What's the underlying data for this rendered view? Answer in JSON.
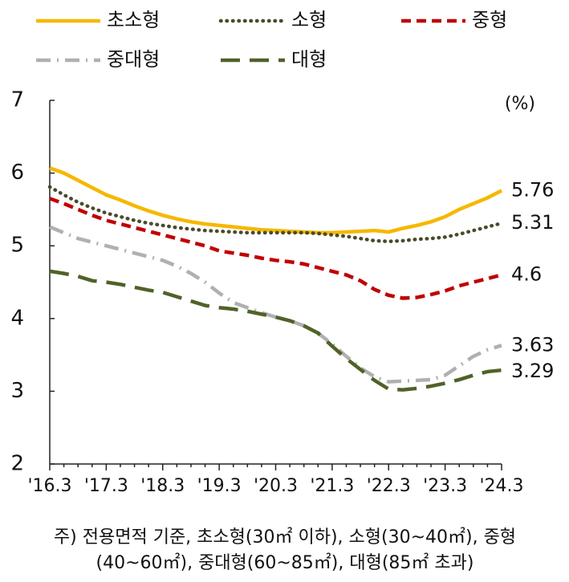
{
  "chart_data": {
    "type": "line",
    "unit_label": "(%)",
    "categories": [
      "'16.3",
      null,
      null,
      null,
      "'17.3",
      null,
      null,
      null,
      "'18.3",
      null,
      null,
      null,
      "'19.3",
      null,
      null,
      null,
      "'20.3",
      null,
      null,
      null,
      "'21.3",
      null,
      null,
      null,
      "'22.3",
      null,
      null,
      null,
      "'23.3",
      null,
      null,
      null,
      "'24.3"
    ],
    "ylim": [
      2,
      7
    ],
    "yticks": [
      2,
      3,
      4,
      5,
      6,
      7
    ],
    "grid": false,
    "series": [
      {
        "name": "초소형",
        "color": "#f5b800",
        "style": "solid",
        "values": [
          6.07,
          6.0,
          5.9,
          5.8,
          5.7,
          5.63,
          5.55,
          5.48,
          5.42,
          5.37,
          5.33,
          5.3,
          5.28,
          5.26,
          5.24,
          5.22,
          5.21,
          5.2,
          5.19,
          5.18,
          5.18,
          5.19,
          5.2,
          5.21,
          5.19,
          5.24,
          5.28,
          5.33,
          5.4,
          5.5,
          5.58,
          5.66,
          5.76
        ]
      },
      {
        "name": "소형",
        "color": "#4a4a2a",
        "style": "dotted",
        "values": [
          5.81,
          5.7,
          5.6,
          5.52,
          5.45,
          5.4,
          5.35,
          5.31,
          5.28,
          5.25,
          5.23,
          5.21,
          5.2,
          5.19,
          5.18,
          5.18,
          5.18,
          5.18,
          5.18,
          5.17,
          5.15,
          5.13,
          5.1,
          5.07,
          5.06,
          5.07,
          5.09,
          5.1,
          5.12,
          5.16,
          5.21,
          5.26,
          5.31
        ]
      },
      {
        "name": "중형",
        "color": "#c00000",
        "style": "dashed",
        "values": [
          5.65,
          5.58,
          5.5,
          5.42,
          5.35,
          5.3,
          5.25,
          5.2,
          5.15,
          5.1,
          5.05,
          5.0,
          4.93,
          4.9,
          4.87,
          4.83,
          4.8,
          4.78,
          4.75,
          4.7,
          4.65,
          4.6,
          4.52,
          4.4,
          4.32,
          4.28,
          4.29,
          4.33,
          4.38,
          4.45,
          4.5,
          4.55,
          4.6
        ]
      },
      {
        "name": "중대형",
        "color": "#b0b0b0",
        "style": "dashdot",
        "values": [
          5.26,
          5.18,
          5.1,
          5.05,
          5.0,
          4.95,
          4.9,
          4.85,
          4.8,
          4.72,
          4.62,
          4.5,
          4.35,
          4.22,
          4.15,
          4.08,
          4.02,
          3.97,
          3.9,
          3.8,
          3.65,
          3.48,
          3.32,
          3.2,
          3.13,
          3.14,
          3.15,
          3.16,
          3.22,
          3.35,
          3.48,
          3.57,
          3.63
        ]
      },
      {
        "name": "대형",
        "color": "#4f6228",
        "style": "longdash",
        "values": [
          4.65,
          4.62,
          4.58,
          4.52,
          4.5,
          4.47,
          4.43,
          4.39,
          4.36,
          4.3,
          4.24,
          4.18,
          4.15,
          4.13,
          4.1,
          4.06,
          4.02,
          3.97,
          3.9,
          3.8,
          3.62,
          3.45,
          3.3,
          3.15,
          3.03,
          3.02,
          3.04,
          3.07,
          3.11,
          3.16,
          3.22,
          3.27,
          3.29
        ]
      }
    ],
    "note": [
      "주) 전용면적 기준, 초소형(30㎡ 이하), 소형(30~40㎡), 중형",
      "(40~60㎡), 중대형(60~85㎡), 대형(85㎡ 초과)"
    ]
  }
}
